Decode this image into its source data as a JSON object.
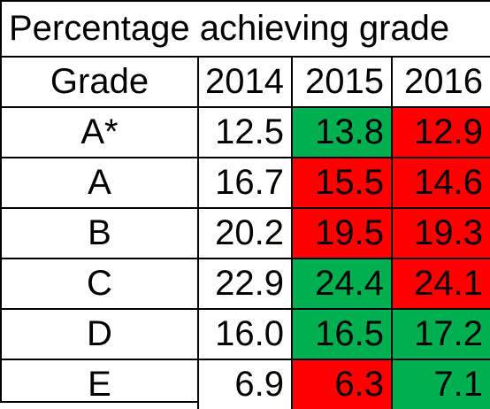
{
  "title": "Percentage achieving grade",
  "colors": {
    "improved": "#00b050",
    "declined": "#ff0000",
    "neutral": "#ffffff"
  },
  "header": {
    "grade_label": "Grade",
    "years": [
      "2014",
      "2015",
      "2016"
    ]
  },
  "rows": [
    {
      "grade": "A*",
      "values": [
        "12.5",
        "13.8",
        "12.9"
      ],
      "fills": [
        "neutral",
        "improved",
        "declined"
      ]
    },
    {
      "grade": "A",
      "values": [
        "16.7",
        "15.5",
        "14.6"
      ],
      "fills": [
        "neutral",
        "declined",
        "declined"
      ]
    },
    {
      "grade": "B",
      "values": [
        "20.2",
        "19.5",
        "19.3"
      ],
      "fills": [
        "neutral",
        "declined",
        "declined"
      ]
    },
    {
      "grade": "C",
      "values": [
        "22.9",
        "24.4",
        "24.1"
      ],
      "fills": [
        "neutral",
        "improved",
        "declined"
      ]
    },
    {
      "grade": "D",
      "values": [
        "16.0",
        "16.5",
        "17.2"
      ],
      "fills": [
        "neutral",
        "improved",
        "improved"
      ]
    },
    {
      "grade": "E",
      "values": [
        "6.9",
        "6.3",
        "7.1"
      ],
      "fills": [
        "neutral",
        "declined",
        "improved"
      ]
    }
  ]
}
